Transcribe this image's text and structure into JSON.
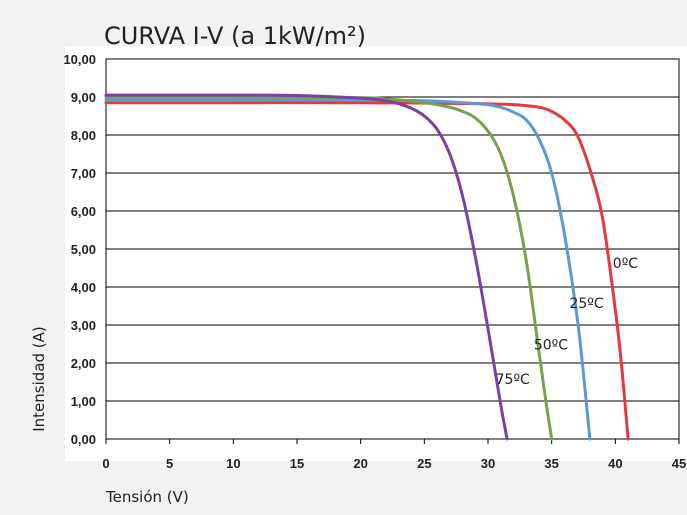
{
  "chart_data": {
    "type": "line",
    "title": "CURVA I-V (a 1kW/m²)",
    "xlabel": "Tensión (V)",
    "ylabel": "Intensidad (A)",
    "xlim": [
      0,
      45
    ],
    "ylim": [
      0,
      10
    ],
    "x_ticks": [
      "0",
      "5",
      "10",
      "15",
      "20",
      "25",
      "30",
      "35",
      "40",
      "45"
    ],
    "y_ticks": [
      "0,00",
      "1,00",
      "2,00",
      "3,00",
      "4,00",
      "5,00",
      "6,00",
      "7,00",
      "8,00",
      "9,00",
      "10,00"
    ],
    "grid": "horizontal",
    "legend": "inline labels near curves",
    "series": [
      {
        "name": "0ºC",
        "color": "#e8383d",
        "x": [
          0,
          10,
          20,
          25,
          28,
          30,
          32,
          34,
          35,
          36,
          37,
          38,
          39,
          40,
          40.5,
          41
        ],
        "y": [
          8.85,
          8.85,
          8.85,
          8.84,
          8.83,
          8.82,
          8.8,
          8.73,
          8.62,
          8.4,
          8.0,
          7.1,
          5.8,
          3.4,
          1.9,
          0.0
        ]
      },
      {
        "name": "25ºC",
        "color": "#5b9bd5",
        "x": [
          0,
          10,
          20,
          25,
          28,
          30,
          31,
          32,
          33,
          34,
          35,
          36,
          37,
          37.5,
          38
        ],
        "y": [
          8.93,
          8.93,
          8.92,
          8.9,
          8.85,
          8.8,
          8.73,
          8.6,
          8.4,
          7.9,
          7.0,
          5.4,
          3.2,
          1.7,
          0.0
        ]
      },
      {
        "name": "50ºC",
        "color": "#77a24d",
        "x": [
          0,
          10,
          20,
          22,
          25,
          27,
          28,
          29,
          30,
          31,
          32,
          33,
          34,
          34.5,
          35
        ],
        "y": [
          9.0,
          9.0,
          8.98,
          8.95,
          8.85,
          8.73,
          8.62,
          8.45,
          8.1,
          7.5,
          6.4,
          4.7,
          2.3,
          1.1,
          0.0
        ]
      },
      {
        "name": "75ºC",
        "color": "#7b3fa6",
        "x": [
          0,
          10,
          15,
          20,
          22,
          23,
          24,
          25,
          26,
          27,
          28,
          29,
          30,
          31,
          31.5
        ],
        "y": [
          9.05,
          9.05,
          9.04,
          8.97,
          8.9,
          8.82,
          8.7,
          8.5,
          8.15,
          7.5,
          6.4,
          4.8,
          2.9,
          0.9,
          0.0
        ]
      }
    ]
  }
}
